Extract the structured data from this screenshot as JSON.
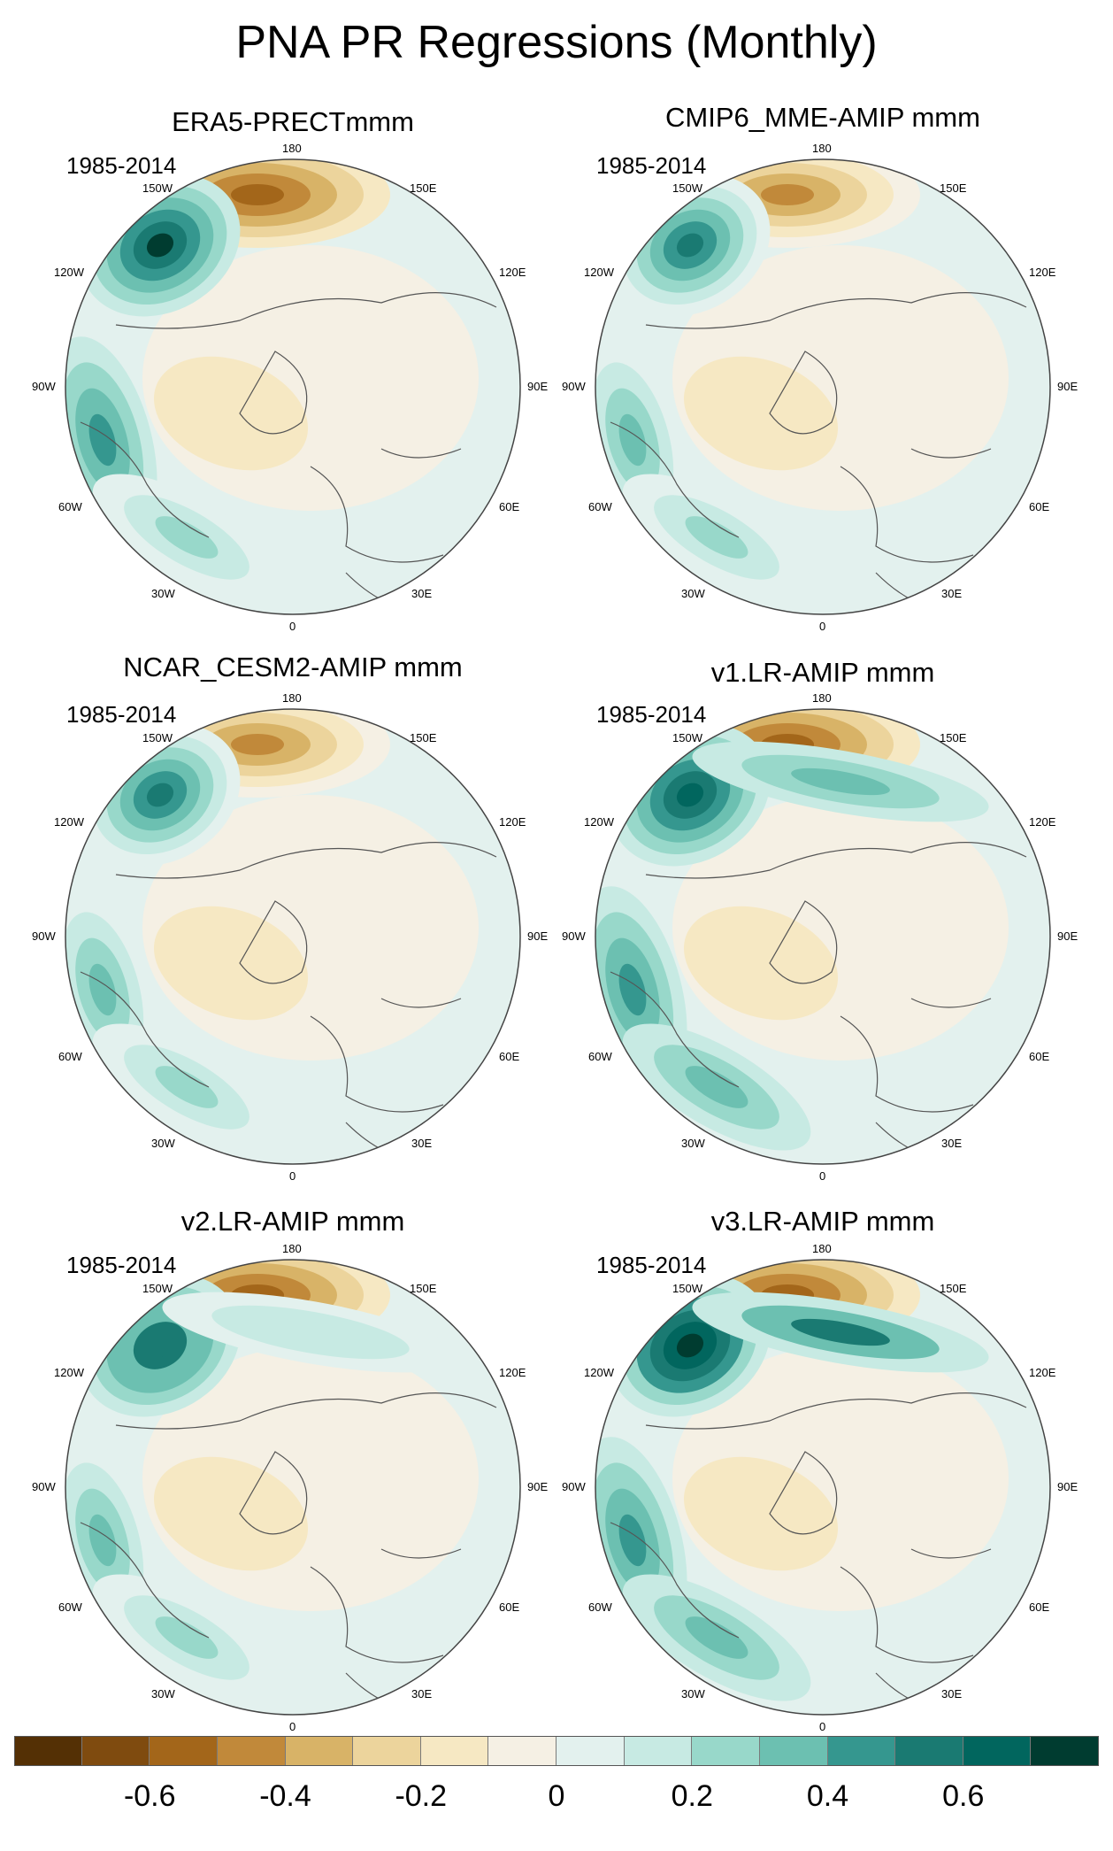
{
  "title": "PNA PR Regressions (Monthly)",
  "period": "1985-2014",
  "lon_labels": {
    "top": "180",
    "bottom": "0",
    "left": "90W",
    "right": "90E",
    "upper_left_1": "150W",
    "upper_left_2": "120W",
    "lower_left_1": "60W",
    "lower_left_2": "30W",
    "upper_right_1": "150E",
    "upper_right_2": "120E",
    "lower_right_1": "60E",
    "lower_right_2": "30E"
  },
  "panels": [
    {
      "title": "ERA5-PRECTmmm",
      "pacific_dry": 0.6,
      "pacific_wet": 0.7,
      "atlantic_wet": 0.4,
      "jet_wet": 0.0
    },
    {
      "title": "CMIP6_MME-AMIP  mmm",
      "pacific_dry": 0.5,
      "pacific_wet": 0.55,
      "atlantic_wet": 0.35,
      "jet_wet": 0.0
    },
    {
      "title": "NCAR_CESM2-AMIP  mmm",
      "pacific_dry": 0.5,
      "pacific_wet": 0.55,
      "atlantic_wet": 0.35,
      "jet_wet": 0.0
    },
    {
      "title": "v1.LR-AMIP  mmm",
      "pacific_dry": 0.55,
      "pacific_wet": 0.65,
      "atlantic_wet": 0.45,
      "jet_wet": 0.35
    },
    {
      "title": "v2.LR-AMIP  mmm",
      "pacific_dry": 0.55,
      "pacific_wet": 0.6,
      "atlantic_wet": 0.3,
      "jet_wet": 0.15
    },
    {
      "title": "v3.LR-AMIP  mmm",
      "pacific_dry": 0.6,
      "pacific_wet": 0.8,
      "atlantic_wet": 0.45,
      "jet_wet": 0.5
    }
  ],
  "colorbar": {
    "colors": [
      "#543005",
      "#7f4b0f",
      "#a3661a",
      "#c1893a",
      "#d8b367",
      "#ecd49c",
      "#f6e8c3",
      "#f5f0e4",
      "#e3f1ee",
      "#c7eae3",
      "#98d8ca",
      "#6cc0b1",
      "#35978f",
      "#1a7a72",
      "#01665e",
      "#003c30"
    ],
    "ticks": [
      {
        "label": "-0.6",
        "pos": 2
      },
      {
        "label": "-0.4",
        "pos": 4
      },
      {
        "label": "-0.2",
        "pos": 6
      },
      {
        "label": "0",
        "pos": 8
      },
      {
        "label": "0.2",
        "pos": 10
      },
      {
        "label": "0.4",
        "pos": 12
      },
      {
        "label": "0.6",
        "pos": 14
      }
    ]
  }
}
